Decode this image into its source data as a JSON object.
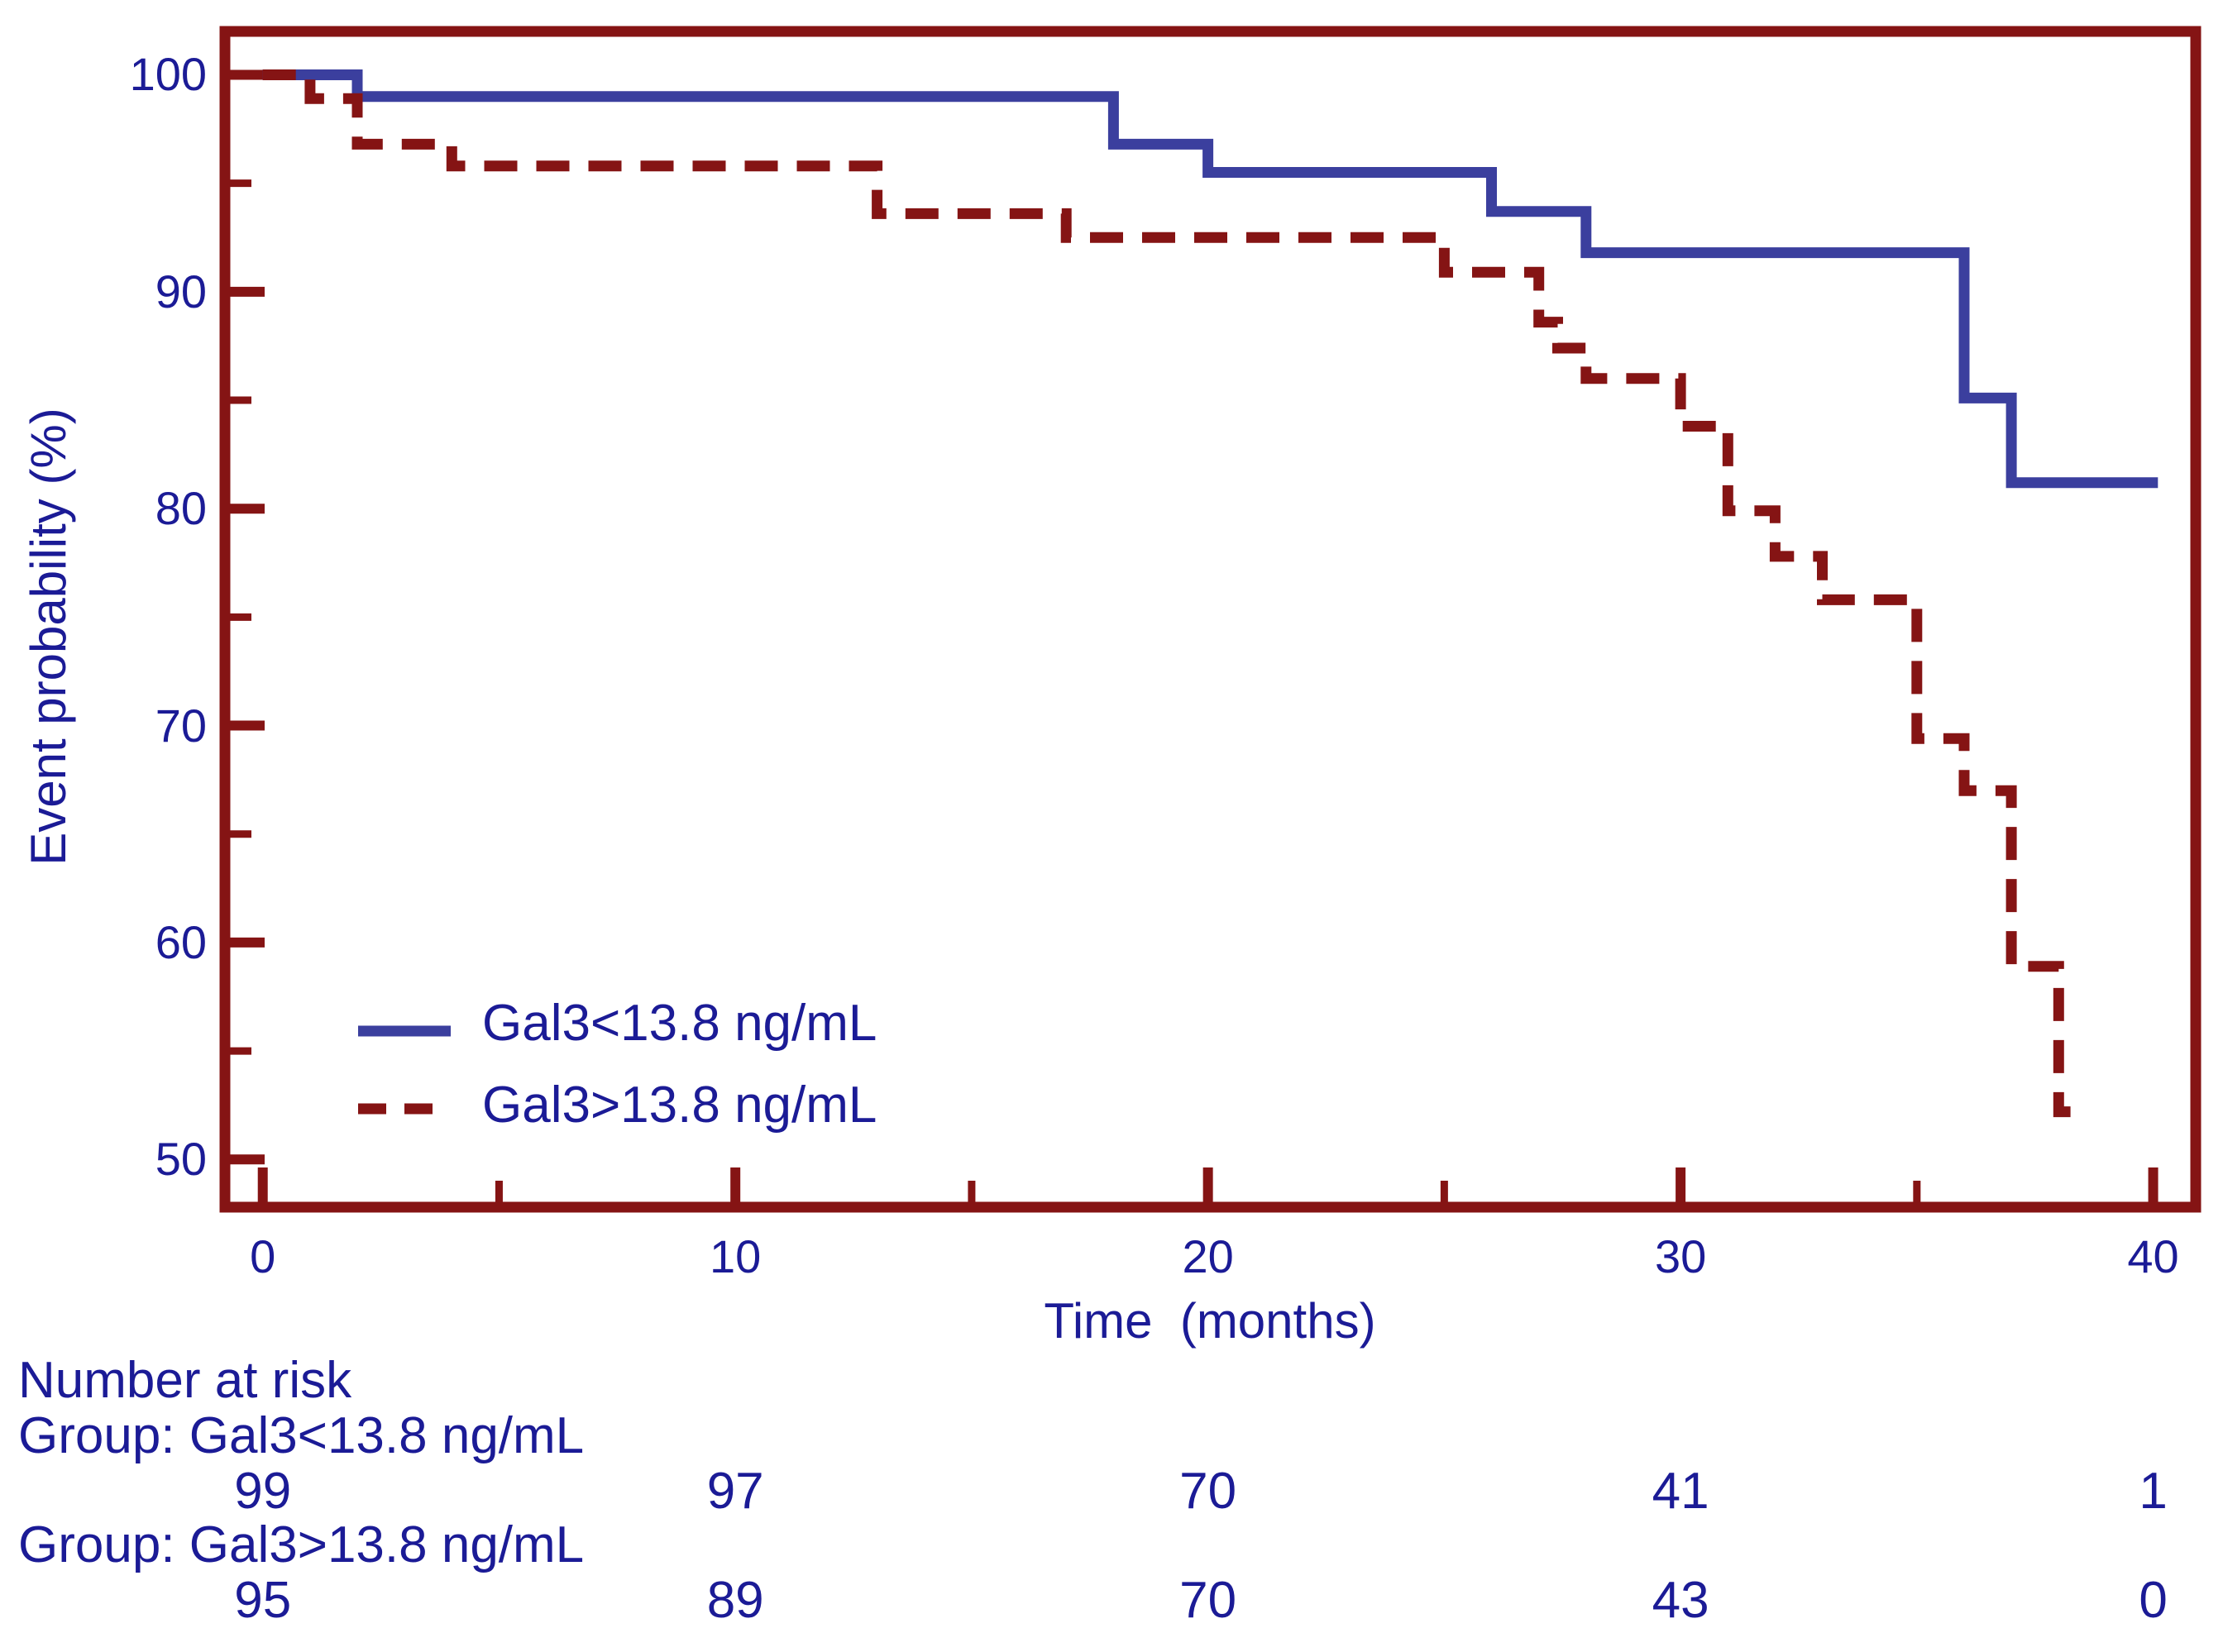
{
  "figure": {
    "background": "#ffffff",
    "axis_color": "#851414",
    "text_color": "#1b1b96"
  },
  "chart_data": {
    "type": "line",
    "subtype": "kaplan-meier-step-curves",
    "title": "",
    "xlabel": "Time  (months)",
    "ylabel": "Event probability (%)",
    "xlim": [
      -0.8,
      40.9
    ],
    "ylim": [
      47.8,
      102.0
    ],
    "x_ticks_major": [
      0,
      10,
      20,
      30,
      40
    ],
    "x_ticks_minor": [
      5,
      15,
      25,
      35
    ],
    "y_ticks_major": [
      100,
      90,
      80,
      70,
      60,
      50
    ],
    "y_ticks_minor": [
      95,
      85,
      75,
      65,
      55
    ],
    "grid": false,
    "legend_position": "inside-lower-left",
    "series": [
      {
        "name": "Gal3<13.8 ng/mL",
        "color": "#3b3f9e",
        "style": "solid",
        "steps": [
          [
            0,
            100
          ],
          [
            2,
            99.0
          ],
          [
            18,
            96.8
          ],
          [
            20,
            95.5
          ],
          [
            26,
            93.7
          ],
          [
            28,
            91.8
          ],
          [
            36,
            85.1
          ],
          [
            37,
            81.2
          ]
        ],
        "end": 40.1
      },
      {
        "name": "Gal3>13.8 ng/mL",
        "color": "#851414",
        "style": "dashed",
        "steps": [
          [
            0,
            100
          ],
          [
            1,
            98.9
          ],
          [
            2,
            96.8
          ],
          [
            4,
            95.8
          ],
          [
            13,
            93.6
          ],
          [
            17,
            92.5
          ],
          [
            25,
            90.9
          ],
          [
            27,
            88.6
          ],
          [
            27.4,
            87.4
          ],
          [
            28,
            86.0
          ],
          [
            30,
            83.8
          ],
          [
            31,
            79.9
          ],
          [
            32,
            77.8
          ],
          [
            33,
            75.8
          ],
          [
            35,
            69.4
          ],
          [
            36,
            67.0
          ],
          [
            37,
            58.9
          ],
          [
            38,
            52.2
          ]
        ],
        "end": 38.25
      }
    ],
    "risk_table": {
      "title": "Number at risk",
      "times": [
        0,
        10,
        20,
        30,
        40
      ],
      "groups": [
        {
          "label": "Group: Gal3<13.8 ng/mL",
          "values": [
            "99",
            "97",
            "70",
            "41",
            "1"
          ]
        },
        {
          "label": "Group: Gal3>13.8 ng/mL",
          "values": [
            "95",
            "89",
            "70",
            "43",
            "0"
          ]
        }
      ]
    }
  }
}
